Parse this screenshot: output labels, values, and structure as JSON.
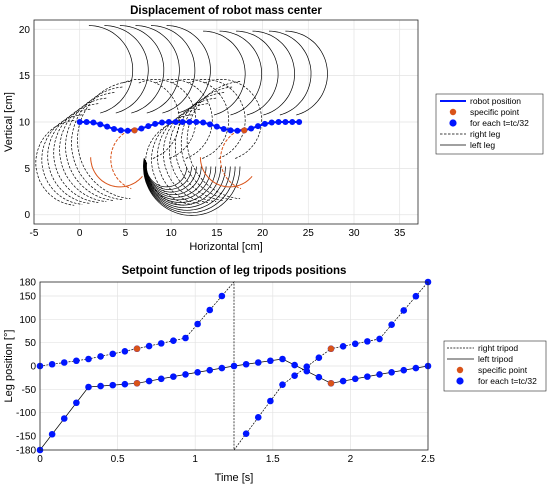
{
  "chart_data": [
    {
      "type": "line",
      "title": "Displacement of robot mass center",
      "xlabel": "Horizontal [cm]",
      "ylabel": "Vertical [cm]",
      "xlim": [
        -5,
        37
      ],
      "ylim": [
        -1,
        21
      ],
      "xticks": [
        -5,
        0,
        5,
        10,
        15,
        20,
        25,
        30,
        35
      ],
      "yticks": [
        0,
        5,
        10,
        15,
        20
      ],
      "grid": true,
      "legend_position": "right",
      "legend": [
        "robot position",
        "specific point",
        "for each t=tc/32",
        "right leg",
        "left leg"
      ],
      "series": [
        {
          "name": "robot position",
          "x": [
            0,
            0.75,
            1.5,
            2.25,
            3,
            3.75,
            4.5,
            5.25,
            6,
            6.75,
            7.5,
            8.25,
            9,
            9.75,
            10.5,
            11.25,
            12,
            12.75,
            13.5,
            14.25,
            15,
            15.75,
            16.5,
            17.25,
            18,
            18.75,
            19.5,
            20.25,
            21,
            21.75,
            22.5,
            23.25,
            24
          ],
          "y": [
            10,
            10,
            9.95,
            9.75,
            9.5,
            9.25,
            9.1,
            9.05,
            9.1,
            9.3,
            9.55,
            9.8,
            9.95,
            10,
            10,
            10,
            10,
            10,
            9.95,
            9.75,
            9.5,
            9.25,
            9.1,
            9.05,
            9.1,
            9.3,
            9.55,
            9.8,
            9.95,
            10,
            10,
            10,
            10
          ]
        },
        {
          "name": "specific point",
          "x": [
            6,
            18
          ],
          "y": [
            9.1,
            9.1
          ]
        }
      ]
    },
    {
      "type": "line",
      "title": "Setpoint function of leg tripods positions",
      "xlabel": "Time [s]",
      "ylabel": "Leg position [°]",
      "xlim": [
        0,
        2.5
      ],
      "ylim": [
        -180,
        180
      ],
      "xticks": [
        0,
        0.5,
        1,
        1.5,
        2,
        2.5
      ],
      "xtick_labels": [
        "0",
        "0.5",
        "1",
        "1.5",
        "2",
        "2.5"
      ],
      "yticks": [
        -180,
        -150,
        -100,
        -50,
        0,
        50,
        100,
        150,
        180
      ],
      "grid": true,
      "legend_position": "right",
      "legend": [
        "right tripod",
        "left tripod",
        "specific point",
        "for each t=tc/32"
      ],
      "series": [
        {
          "name": "right tripod",
          "x": [
            0,
            0.3125,
            0.625,
            0.9375,
            1.25,
            1.25,
            1.5625,
            1.875,
            2.1875,
            2.5
          ],
          "y": [
            0,
            15,
            37,
            60,
            180,
            -180,
            -40,
            37,
            58,
            180
          ]
        },
        {
          "name": "left tripod",
          "x": [
            0,
            0.3125,
            0.625,
            0.9375,
            1.25,
            1.5625,
            1.875,
            2.1875,
            2.5
          ],
          "y": [
            -180,
            -45,
            -37,
            -18,
            0,
            15,
            -37,
            -18,
            0
          ]
        },
        {
          "name": "specific point",
          "x": [
            0.625,
            0.625,
            1.875,
            1.875
          ],
          "y": [
            37,
            -37,
            37,
            -37
          ]
        }
      ]
    }
  ]
}
